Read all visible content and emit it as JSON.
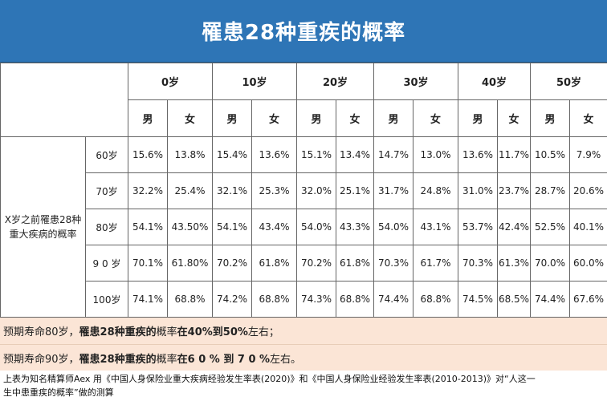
{
  "title": "罹患28种重疾的概率",
  "table": {
    "ages": [
      "0岁",
      "10岁",
      "20岁",
      "30岁",
      "40岁",
      "50岁"
    ],
    "sex": [
      "男",
      "女"
    ],
    "row_title_line1": "X岁之前罹患28种",
    "row_title_line2": "重大疾病的概率",
    "rows": [
      {
        "age": "60岁",
        "values": [
          "15.6%",
          "13.8%",
          "15.4%",
          "13.6%",
          "15.1%",
          "13.4%",
          "14.7%",
          "13.0%",
          "13.6%",
          "11.7%",
          "10.5%",
          "7.9%"
        ]
      },
      {
        "age": "70岁",
        "values": [
          "32.2%",
          "25.4%",
          "32.1%",
          "25.3%",
          "32.0%",
          "25.1%",
          "31.7%",
          "24.8%",
          "31.0%",
          "23.7%",
          "28.7%",
          "20.6%"
        ]
      },
      {
        "age": "80岁",
        "values": [
          "54.1%",
          "43.50%",
          "54.1%",
          "43.4%",
          "54.0%",
          "43.3%",
          "54.0%",
          "43.1%",
          "53.7%",
          "42.4%",
          "52.5%",
          "40.1%"
        ]
      },
      {
        "age": "9 0 岁",
        "values": [
          "70.1%",
          "61.80%",
          "70.2%",
          "61.8%",
          "70.2%",
          "61.8%",
          "70.3%",
          "61.7%",
          "70.3%",
          "61.3%",
          "70.0%",
          "60.0%"
        ]
      },
      {
        "age": "100岁",
        "values": [
          "74.1%",
          "68.8%",
          "74.2%",
          "68.8%",
          "74.3%",
          "68.8%",
          "74.4%",
          "68.8%",
          "74.5%",
          "68.5%",
          "74.4%",
          "67.6%"
        ]
      }
    ]
  },
  "notes": [
    {
      "prefix": "预期寿命80岁，",
      "bold1": "罹患28种重疾的",
      "middle": "概率",
      "bold2": "在40%到50%",
      "suffix": "左右；"
    },
    {
      "prefix": "预期寿命90岁，",
      "bold1": "罹患28种重疾的",
      "middle": "概率",
      "bold2": "在6 0 % 到 7 0 %",
      "suffix": "左右。"
    }
  ],
  "footnote_line1": "上表为知名精算师Aex 用《中国人身保险业重大疾病经验发生率表(2020)》和《中国人身保险业经验发生率表(2010-2013)》对“人这一",
  "footnote_line2": "生中患重疾的概率”做的测算"
}
